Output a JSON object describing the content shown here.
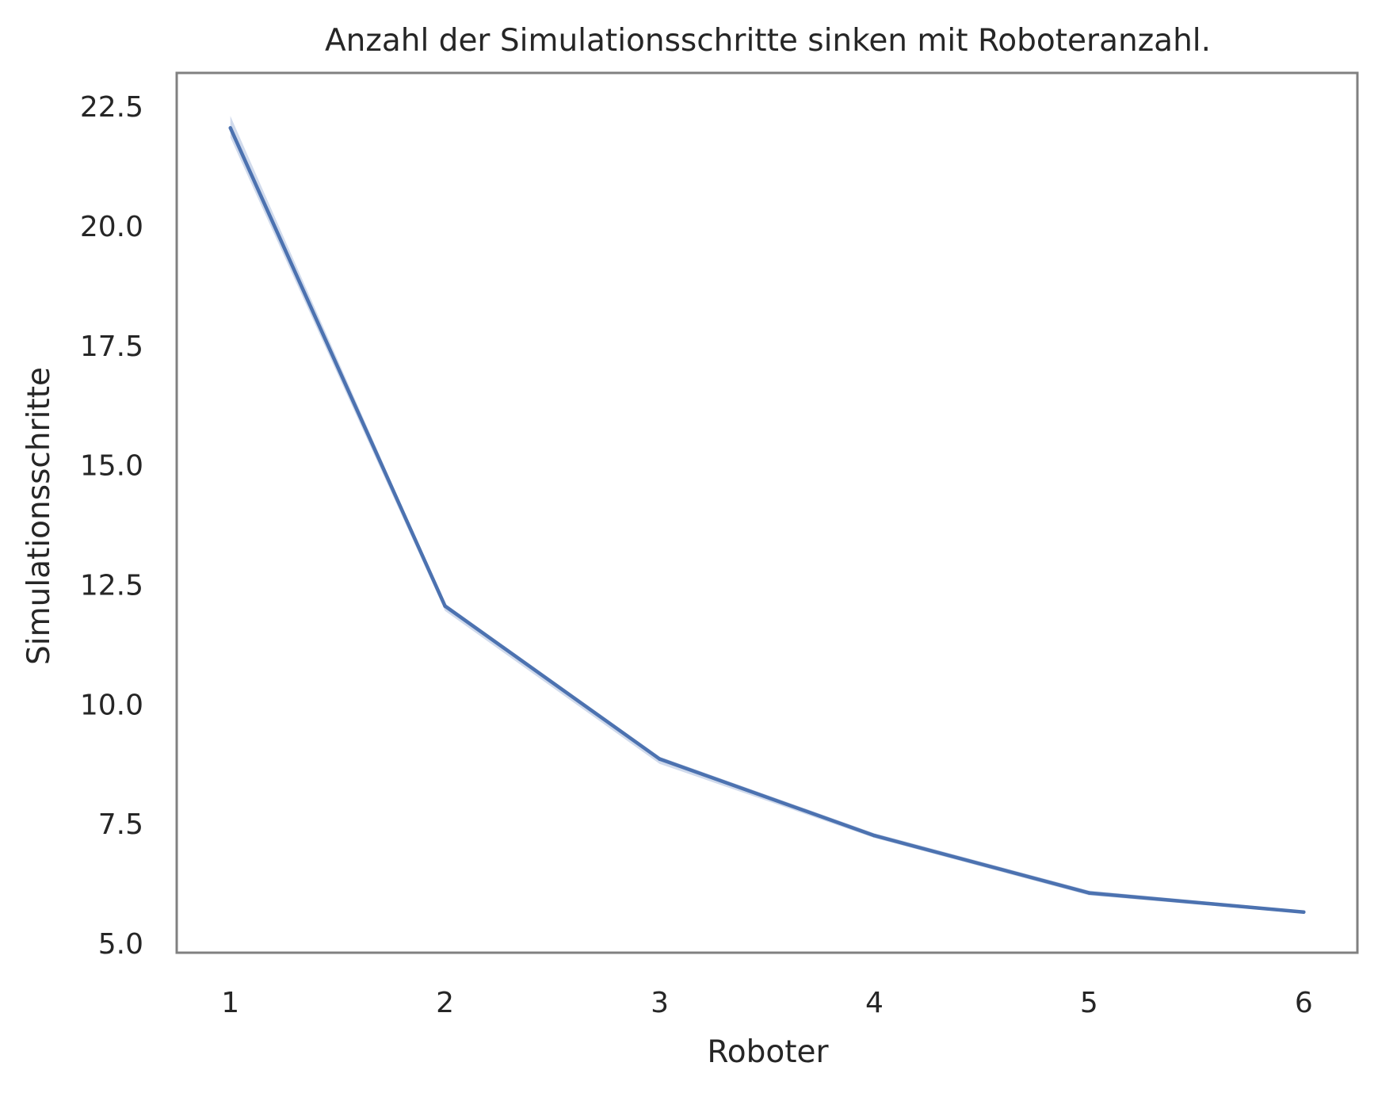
{
  "chart_data": {
    "type": "line",
    "title": "Anzahl der Simulationsschritte sinken mit Roboteranzahl.",
    "xlabel": "Roboter",
    "ylabel": "Simulationsschritte",
    "x": [
      1,
      2,
      3,
      4,
      5,
      6
    ],
    "x_tick_labels": [
      "1",
      "2",
      "3",
      "4",
      "5",
      "6"
    ],
    "y_tick_labels": [
      "5.0",
      "7.5",
      "10.0",
      "12.5",
      "15.0",
      "17.5",
      "20.0",
      "22.5"
    ],
    "y_ticks": [
      5.0,
      7.5,
      10.0,
      12.5,
      15.0,
      17.5,
      20.0,
      22.5
    ],
    "xlim": [
      0.75,
      6.25
    ],
    "ylim": [
      4.8,
      23.2
    ],
    "grid": false,
    "series": [
      {
        "values": [
          22.05,
          12.05,
          8.85,
          7.25,
          6.05,
          5.65
        ],
        "ci_lower": [
          21.85,
          11.95,
          8.75,
          7.2,
          6.0,
          5.62
        ],
        "ci_upper": [
          22.3,
          12.1,
          8.9,
          7.3,
          6.1,
          5.68
        ],
        "color": "#4c72b0",
        "band_color": "#a9bbdd"
      }
    ],
    "frame_color": "#808080"
  }
}
